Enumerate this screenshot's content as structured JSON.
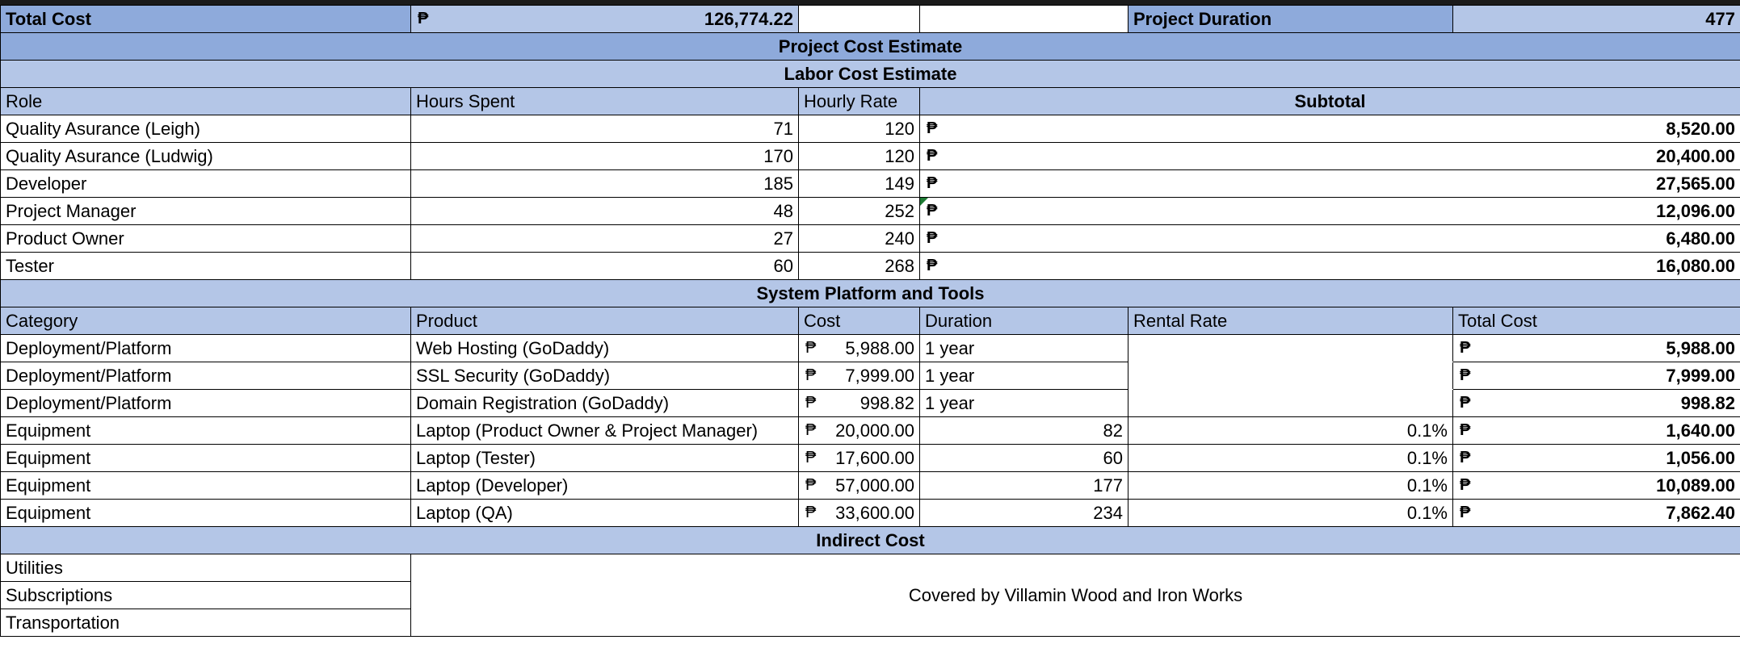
{
  "summary": {
    "total_cost_label": "Total Cost",
    "total_cost_currency": "₱",
    "total_cost_value": "126,774.22",
    "duration_label": "Project Duration",
    "duration_value": "477"
  },
  "title": "Project Cost Estimate",
  "labor": {
    "section_title": "Labor Cost Estimate",
    "headers": [
      "Role",
      "Hours Spent",
      "Hourly Rate",
      "Subtotal"
    ],
    "rows": [
      {
        "role": "Quality Asurance (Leigh)",
        "hours": "71",
        "rate": "120",
        "currency": "₱",
        "subtotal": "8,520.00"
      },
      {
        "role": "Quality Asurance (Ludwig)",
        "hours": "170",
        "rate": "120",
        "currency": "₱",
        "subtotal": "20,400.00"
      },
      {
        "role": "Developer",
        "hours": "185",
        "rate": "149",
        "currency": "₱",
        "subtotal": "27,565.00"
      },
      {
        "role": "Project Manager",
        "hours": "48",
        "rate": "252",
        "currency": "₱",
        "subtotal": "12,096.00"
      },
      {
        "role": "Product Owner",
        "hours": "27",
        "rate": "240",
        "currency": "₱",
        "subtotal": "6,480.00"
      },
      {
        "role": "Tester",
        "hours": "60",
        "rate": "268",
        "currency": "₱",
        "subtotal": "16,080.00"
      }
    ]
  },
  "platform": {
    "section_title": "System Platform and Tools",
    "headers": [
      "Category",
      "Product",
      "Cost",
      "Duration",
      "Rental Rate",
      "Total Cost"
    ],
    "rows": [
      {
        "category": "Deployment/Platform",
        "product": "Web Hosting (GoDaddy)",
        "cost_currency": "₱",
        "cost": "5,988.00",
        "duration": "1 year",
        "rental": "",
        "total_currency": "₱",
        "total": "5,988.00"
      },
      {
        "category": "Deployment/Platform",
        "product": "SSL Security (GoDaddy)",
        "cost_currency": "₱",
        "cost": "7,999.00",
        "duration": "1 year",
        "rental": "",
        "total_currency": "₱",
        "total": "7,999.00"
      },
      {
        "category": "Deployment/Platform",
        "product": "Domain Registration  (GoDaddy)",
        "cost_currency": "₱",
        "cost": "998.82",
        "duration": "1 year",
        "rental": "",
        "total_currency": "₱",
        "total": "998.82"
      },
      {
        "category": "Equipment",
        "product": "Laptop (Product Owner & Project Manager)",
        "cost_currency": "₱",
        "cost": "20,000.00",
        "duration": "82",
        "rental": "0.1%",
        "total_currency": "₱",
        "total": "1,640.00"
      },
      {
        "category": "Equipment",
        "product": "Laptop (Tester)",
        "cost_currency": "₱",
        "cost": "17,600.00",
        "duration": "60",
        "rental": "0.1%",
        "total_currency": "₱",
        "total": "1,056.00"
      },
      {
        "category": "Equipment",
        "product": "Laptop (Developer)",
        "cost_currency": "₱",
        "cost": "57,000.00",
        "duration": "177",
        "rental": "0.1%",
        "total_currency": "₱",
        "total": "10,089.00"
      },
      {
        "category": "Equipment",
        "product": "Laptop (QA)",
        "cost_currency": "₱",
        "cost": "33,600.00",
        "duration": "234",
        "rental": "0.1%",
        "total_currency": "₱",
        "total": "7,862.40"
      }
    ]
  },
  "indirect": {
    "section_title": "Indirect Cost",
    "items": [
      "Utilities",
      "Subscriptions",
      "Transportation"
    ],
    "note": "Covered by Villamin Wood and Iron Works"
  }
}
